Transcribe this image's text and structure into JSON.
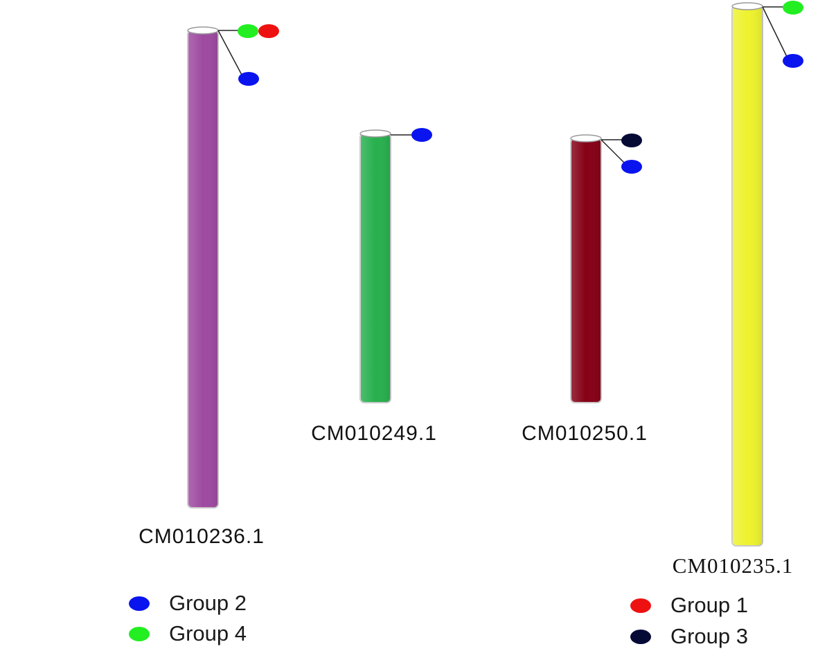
{
  "chromosomes": [
    {
      "id": "CM010236.1",
      "label": "CM010236.1",
      "color": "#9e4aa0",
      "markers": [
        {
          "group": "Group 4",
          "color": "#22ee22"
        },
        {
          "group": "Group 1",
          "color": "#ee1111"
        },
        {
          "group": "Group 2",
          "color": "#0a14ee"
        }
      ]
    },
    {
      "id": "CM010249.1",
      "label": "CM010249.1",
      "color": "#27b04e",
      "markers": [
        {
          "group": "Group 2",
          "color": "#0a14ee"
        }
      ]
    },
    {
      "id": "CM010250.1",
      "label": "CM010250.1",
      "color": "#860016",
      "markers": [
        {
          "group": "Group 3",
          "color": "#050a35"
        },
        {
          "group": "Group 2",
          "color": "#0a14ee"
        }
      ]
    },
    {
      "id": "CM010235.1",
      "label": "CM010235.1",
      "color": "#eef22e",
      "markers": [
        {
          "group": "Group 4",
          "color": "#22ee22"
        },
        {
          "group": "Group 2",
          "color": "#0a14ee"
        }
      ]
    }
  ],
  "legend": [
    {
      "key": "group-2",
      "label": "Group 2",
      "color": "#0a14ee"
    },
    {
      "key": "group-4",
      "label": "Group 4",
      "color": "#22ee22"
    },
    {
      "key": "group-1",
      "label": "Group 1",
      "color": "#ee1111"
    },
    {
      "key": "group-3",
      "label": "Group 3",
      "color": "#050a35"
    }
  ]
}
